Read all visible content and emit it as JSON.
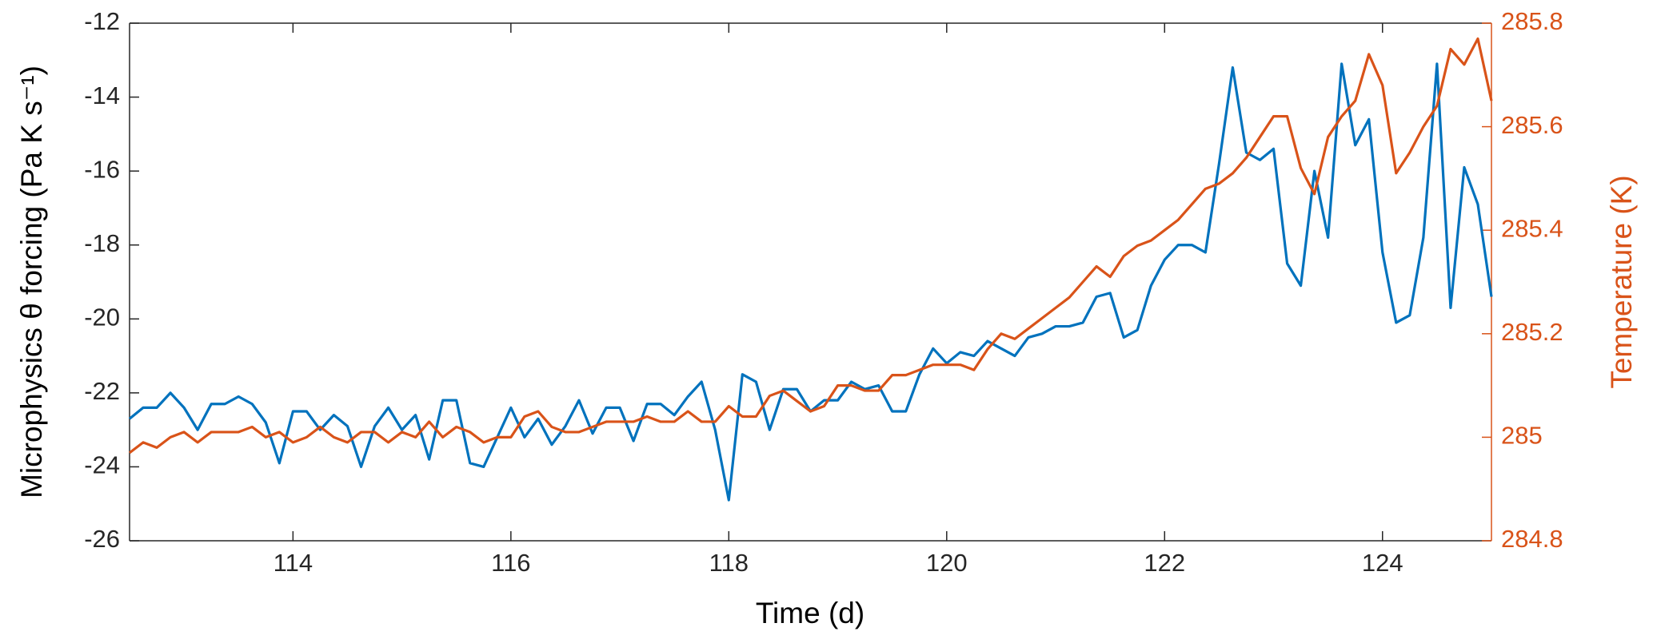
{
  "chart_data": {
    "type": "line",
    "xlabel": "Time (d)",
    "ylabel": "Microphysics θ forcing (Pa K s⁻¹)",
    "y2label": "Temperature (K)",
    "x": [
      112.5,
      112.625,
      112.75,
      112.875,
      113,
      113.125,
      113.25,
      113.375,
      113.5,
      113.625,
      113.75,
      113.875,
      114,
      114.125,
      114.25,
      114.375,
      114.5,
      114.625,
      114.75,
      114.875,
      115,
      115.125,
      115.25,
      115.375,
      115.5,
      115.625,
      115.75,
      115.875,
      116,
      116.125,
      116.25,
      116.375,
      116.5,
      116.625,
      116.75,
      116.875,
      117,
      117.125,
      117.25,
      117.375,
      117.5,
      117.625,
      117.75,
      117.875,
      118,
      118.125,
      118.25,
      118.375,
      118.5,
      118.625,
      118.75,
      118.875,
      119,
      119.125,
      119.25,
      119.375,
      119.5,
      119.625,
      119.75,
      119.875,
      120,
      120.125,
      120.25,
      120.375,
      120.5,
      120.625,
      120.75,
      120.875,
      121,
      121.125,
      121.25,
      121.375,
      121.5,
      121.625,
      121.75,
      121.875,
      122,
      122.125,
      122.25,
      122.375,
      122.5,
      122.625,
      122.75,
      122.875,
      123,
      123.125,
      123.25,
      123.375,
      123.5,
      123.625,
      123.75,
      123.875,
      124,
      124.125,
      124.25,
      124.375,
      124.5,
      124.625,
      124.75,
      124.875,
      125
    ],
    "series": [
      {
        "name": "Microphysics θ forcing",
        "color": "#0072bd",
        "axis": "y",
        "values": [
          -22.7,
          -22.4,
          -22.4,
          -22.0,
          -22.4,
          -23.0,
          -22.3,
          -22.3,
          -22.1,
          -22.3,
          -22.8,
          -23.9,
          -22.5,
          -22.5,
          -23.0,
          -22.6,
          -22.9,
          -24.0,
          -22.9,
          -22.4,
          -23.0,
          -22.6,
          -23.8,
          -22.2,
          -22.2,
          -23.9,
          -24.0,
          -23.2,
          -22.4,
          -23.2,
          -22.7,
          -23.4,
          -22.9,
          -22.2,
          -23.1,
          -22.4,
          -22.4,
          -23.3,
          -22.3,
          -22.3,
          -22.6,
          -22.1,
          -21.7,
          -23.0,
          -24.9,
          -21.5,
          -21.7,
          -23.0,
          -21.9,
          -21.9,
          -22.5,
          -22.2,
          -22.2,
          -21.7,
          -21.9,
          -21.8,
          -22.5,
          -22.5,
          -21.5,
          -20.8,
          -21.2,
          -20.9,
          -21.0,
          -20.6,
          -20.8,
          -21.0,
          -20.5,
          -20.4,
          -20.2,
          -20.2,
          -20.1,
          -19.4,
          -19.3,
          -20.5,
          -20.3,
          -19.1,
          -18.4,
          -18.0,
          -18.0,
          -18.2,
          -15.8,
          -13.2,
          -15.5,
          -15.7,
          -15.4,
          -18.5,
          -19.1,
          -16.0,
          -17.8,
          -13.1,
          -15.3,
          -14.6,
          -18.2,
          -20.1,
          -19.9,
          -17.8,
          -13.1,
          -19.7,
          -15.9,
          -16.9,
          -19.4
        ]
      },
      {
        "name": "Temperature",
        "color": "#d95319",
        "axis": "y2",
        "values": [
          284.97,
          284.99,
          284.98,
          285.0,
          285.01,
          284.99,
          285.01,
          285.01,
          285.01,
          285.02,
          285.0,
          285.01,
          284.99,
          285.0,
          285.02,
          285.0,
          284.99,
          285.01,
          285.01,
          284.99,
          285.01,
          285.0,
          285.03,
          285.0,
          285.02,
          285.01,
          284.99,
          285.0,
          285.0,
          285.04,
          285.05,
          285.02,
          285.01,
          285.01,
          285.02,
          285.03,
          285.03,
          285.03,
          285.04,
          285.03,
          285.03,
          285.05,
          285.03,
          285.03,
          285.06,
          285.04,
          285.04,
          285.08,
          285.09,
          285.07,
          285.05,
          285.06,
          285.1,
          285.1,
          285.09,
          285.09,
          285.12,
          285.12,
          285.13,
          285.14,
          285.14,
          285.14,
          285.13,
          285.17,
          285.2,
          285.19,
          285.21,
          285.23,
          285.25,
          285.27,
          285.3,
          285.33,
          285.31,
          285.35,
          285.37,
          285.38,
          285.4,
          285.42,
          285.45,
          285.48,
          285.49,
          285.51,
          285.54,
          285.58,
          285.62,
          285.62,
          285.52,
          285.47,
          285.58,
          285.62,
          285.65,
          285.74,
          285.68,
          285.51,
          285.55,
          285.6,
          285.64,
          285.75,
          285.72,
          285.77,
          285.65
        ]
      }
    ],
    "xlim": [
      112.5,
      125
    ],
    "xticks": [
      114,
      116,
      118,
      120,
      122,
      124
    ],
    "ylim": [
      -26,
      -12
    ],
    "yticks": [
      -26,
      -24,
      -22,
      -20,
      -18,
      -16,
      -14,
      -12
    ],
    "y2lim": [
      284.8,
      285.8
    ],
    "y2ticks": [
      284.8,
      285,
      285.2,
      285.4,
      285.6,
      285.8
    ],
    "y2color": "#d95319"
  }
}
